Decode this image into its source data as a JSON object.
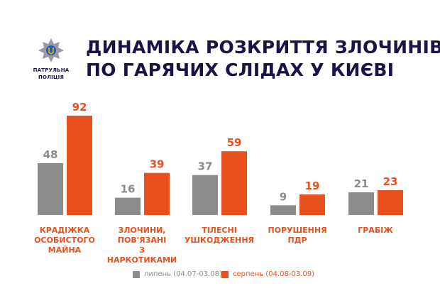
{
  "logo": {
    "line1": "ПАТРУЛЬНА",
    "line2": "ПОЛІЦІЯ"
  },
  "title": {
    "line1": "ДИНАМІКА РОЗКРИТТЯ ЗЛОЧИНІВ",
    "line2": "ПО ГАРЯЧИХ СЛІДАХ У КИЄВІ"
  },
  "chart_data": {
    "type": "bar",
    "title": "ДИНАМІКА РОЗКРИТТЯ ЗЛОЧИНІВ ПО ГАРЯЧИХ СЛІДАХ У КИЄВІ",
    "categories": [
      "КРАДІЖКА ОСОБИСТОГО МАЙНА",
      "ЗЛОЧИНИ, ПОВ'ЯЗАНІ З НАРКОТИКАМИ",
      "ТІЛЕСНІ УШКОДЖЕННЯ",
      "ПОРУШЕННЯ ПДР",
      "ГРАБІЖ"
    ],
    "category_lines": [
      [
        "КРАДІЖКА",
        "ОСОБИСТОГО",
        "МАЙНА"
      ],
      [
        "ЗЛОЧИНИ,",
        "ПОВ'ЯЗАНІ",
        "З НАРКОТИКАМИ"
      ],
      [
        "ТІЛЕСНІ",
        "УШКОДЖЕННЯ"
      ],
      [
        "ПОРУШЕННЯ",
        "ПДР"
      ],
      [
        "ГРАБІЖ"
      ]
    ],
    "series": [
      {
        "name": "липень (04.07-03.08)",
        "values": [
          48,
          16,
          37,
          9,
          21
        ],
        "color": "#8c8c8c"
      },
      {
        "name": "серпень (04.08-03.09)",
        "values": [
          92,
          39,
          59,
          19,
          23
        ],
        "color": "#e8501e"
      }
    ],
    "ylim": [
      0,
      92
    ],
    "grid": false,
    "legend": "bottom",
    "data_labels": true
  }
}
